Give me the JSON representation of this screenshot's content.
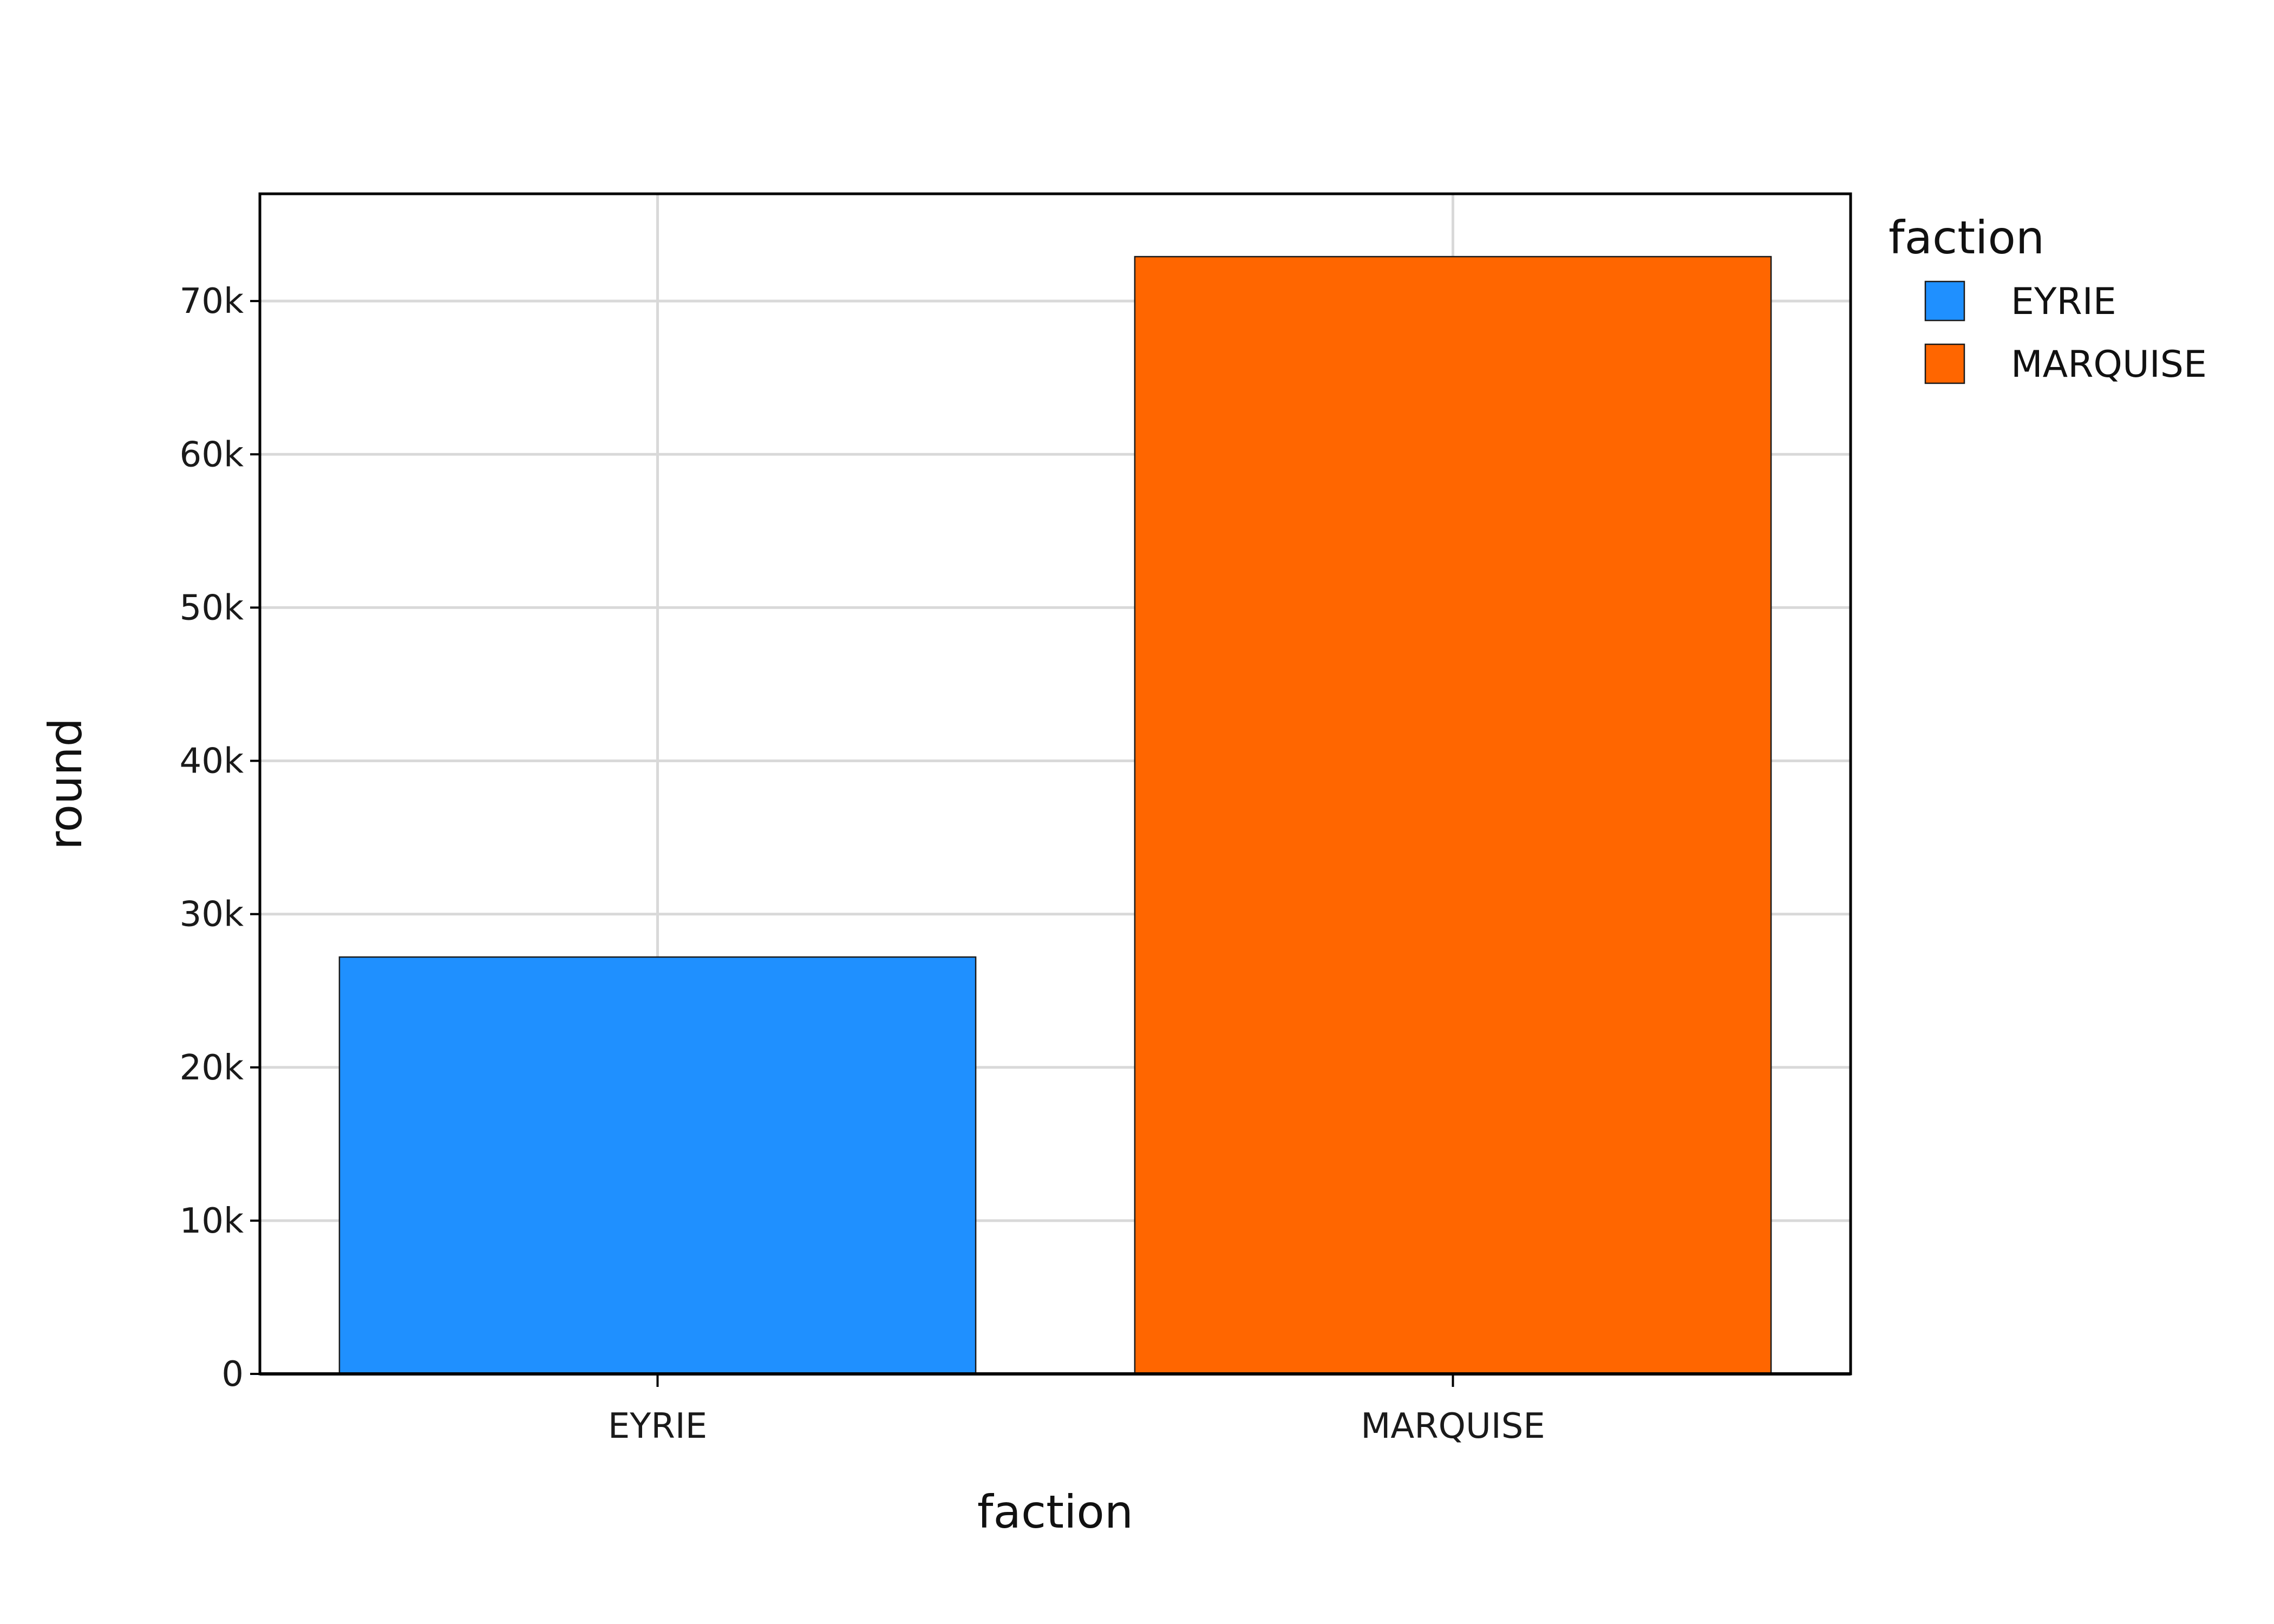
{
  "chart_data": {
    "type": "bar",
    "categories": [
      "EYRIE",
      "MARQUISE"
    ],
    "values": [
      27200,
      72900
    ],
    "colors": [
      "#1f90ff",
      "#ff6600"
    ],
    "xlabel": "faction",
    "ylabel": "round",
    "ylim": [
      0,
      77000
    ],
    "yticks": [
      0,
      10000,
      20000,
      30000,
      40000,
      50000,
      60000,
      70000
    ],
    "ytick_labels": [
      "0",
      "10k",
      "20k",
      "30k",
      "40k",
      "50k",
      "60k",
      "70k"
    ],
    "grid": true,
    "legend": {
      "title": "faction",
      "position": "right",
      "entries": [
        "EYRIE",
        "MARQUISE"
      ]
    }
  }
}
